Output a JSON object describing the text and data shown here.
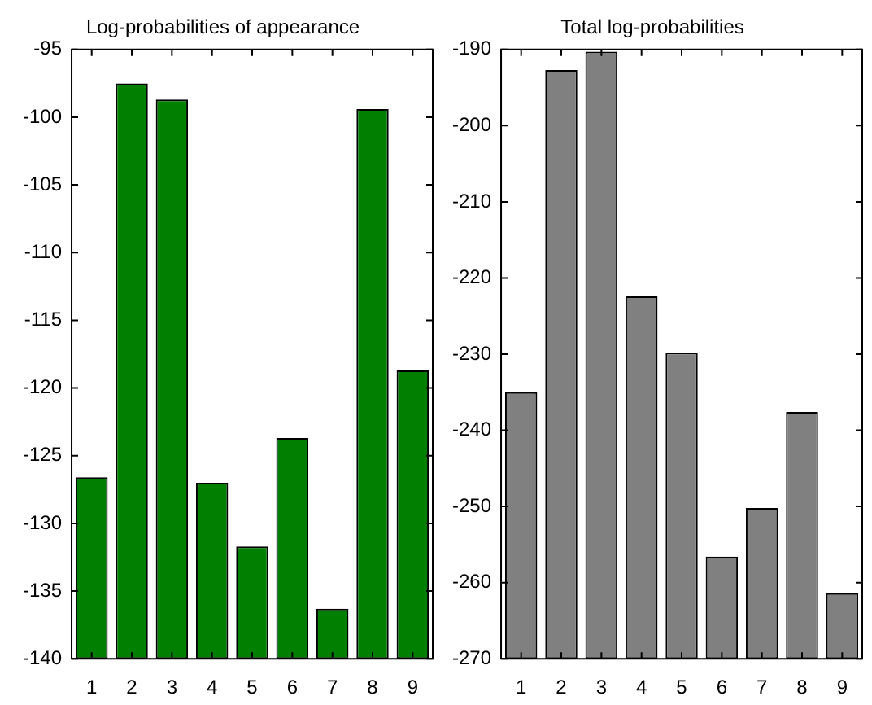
{
  "chart_data": [
    {
      "type": "bar",
      "title": "Log-probabilities of appearance",
      "categories": [
        "1",
        "2",
        "3",
        "4",
        "5",
        "6",
        "7",
        "8",
        "9"
      ],
      "base": [
        -140,
        -140,
        -140,
        -140,
        -140,
        -140,
        -140,
        -140,
        -140
      ],
      "values": [
        13.4,
        42.5,
        41.3,
        13.0,
        8.3,
        16.3,
        3.7,
        40.6,
        21.3
      ],
      "color": "#007f00",
      "ylim": [
        -140,
        -95
      ],
      "yticks": [
        -140,
        -135,
        -130,
        -125,
        -120,
        -115,
        -110,
        -105,
        -100,
        -95
      ],
      "grid": false,
      "legend": false
    },
    {
      "type": "bar",
      "title": "Total log-probabilities",
      "categories": [
        "1",
        "2",
        "3",
        "4",
        "5",
        "6",
        "7",
        "8",
        "9"
      ],
      "base": [
        -270,
        -270,
        -270,
        -270,
        -270,
        -270,
        -270,
        -270,
        -270
      ],
      "values": [
        35.0,
        77.3,
        79.7,
        47.6,
        40.2,
        13.4,
        19.8,
        32.4,
        8.6
      ],
      "color": "#808080",
      "ylim": [
        -270,
        -190
      ],
      "yticks": [
        -270,
        -260,
        -250,
        -240,
        -230,
        -220,
        -210,
        -200,
        -190
      ],
      "grid": false,
      "legend": false
    }
  ]
}
